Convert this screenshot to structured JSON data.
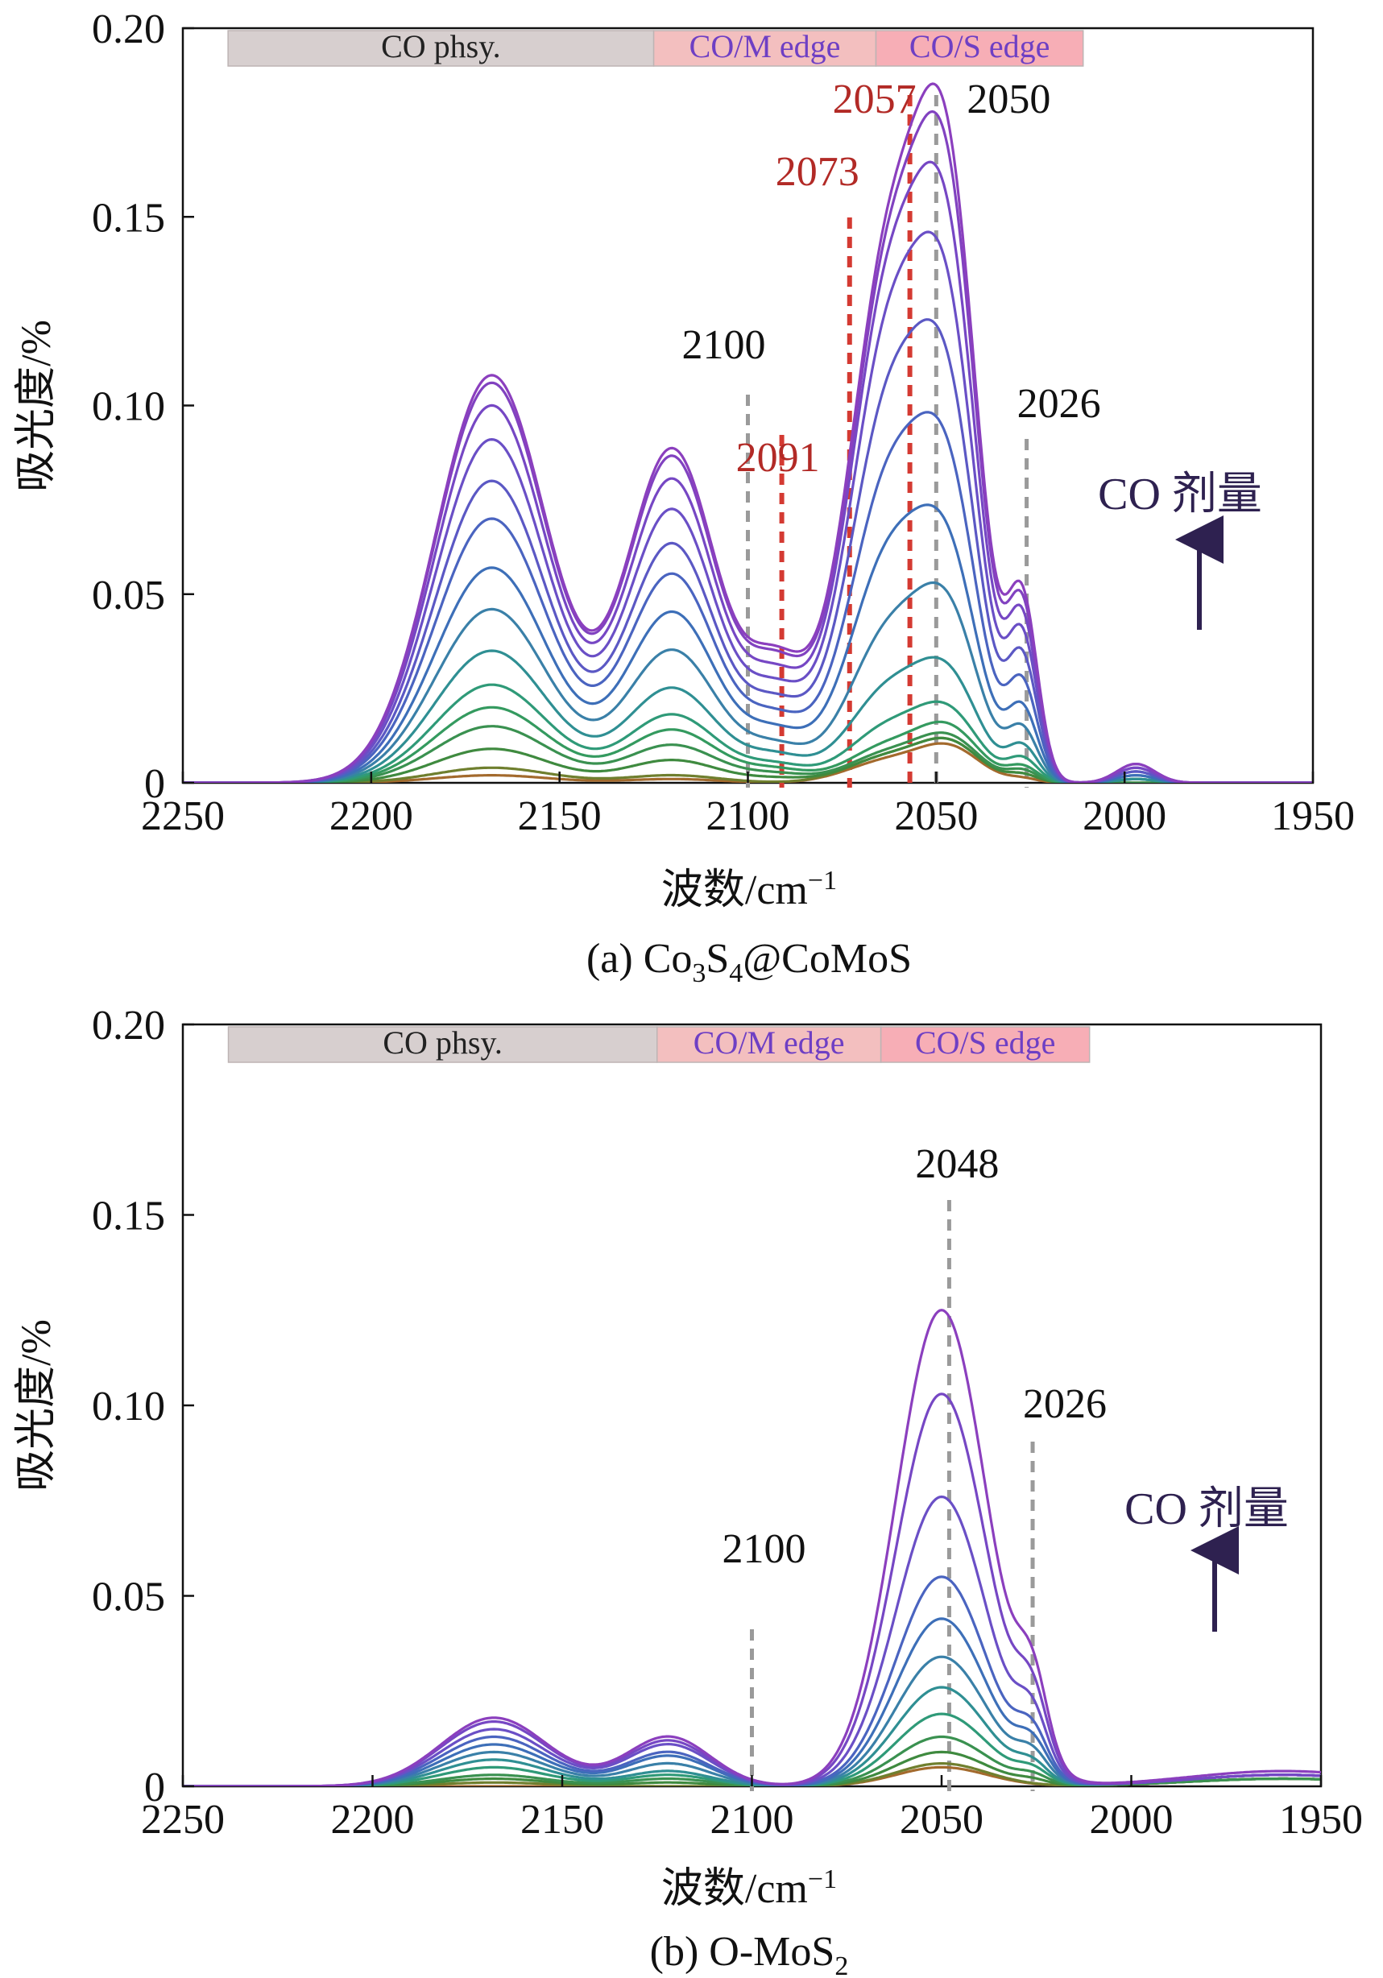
{
  "chart_data": [
    {
      "panel": "a",
      "type": "line",
      "caption_prefix": "(a) ",
      "caption_parts": [
        "Co",
        "3",
        "S",
        "4",
        "@CoMoS"
      ],
      "xlabel": "波数/cm",
      "xlabel_sup": "−1",
      "ylabel": "吸光度/%",
      "xlim": [
        2250,
        1950
      ],
      "ylim": [
        0,
        0.2
      ],
      "xticks": [
        "2250",
        "2200",
        "2150",
        "2100",
        "2050",
        "2000",
        "1950"
      ],
      "yticks": [
        "0",
        "0.05",
        "0.10",
        "0.15",
        "0.20"
      ],
      "bands": [
        {
          "label": "CO phsy.",
          "x_from": 2238,
          "x_to": 2125,
          "color": "#d7cfcf",
          "text_color": "#222222"
        },
        {
          "label": "CO/M edge",
          "x_from": 2125,
          "x_to": 2066,
          "color": "#f3bfbf",
          "text_color": "#6e3fc4"
        },
        {
          "label": "CO/S edge",
          "x_from": 2066,
          "x_to": 2011,
          "color": "#f7aeb6",
          "text_color": "#6e3fc4"
        }
      ],
      "peaks": [
        {
          "wavenumber": 2100,
          "label": "2100",
          "color": "gray"
        },
        {
          "wavenumber": 2091,
          "label": "2091",
          "color": "red"
        },
        {
          "wavenumber": 2073,
          "label": "2073",
          "color": "red"
        },
        {
          "wavenumber": 2057,
          "label": "2057",
          "color": "red"
        },
        {
          "wavenumber": 2050,
          "label": "2050",
          "color": "gray"
        },
        {
          "wavenumber": 2026,
          "label": "2026",
          "color": "gray"
        }
      ],
      "dose_label": "CO 剂量",
      "components": [
        {
          "center": 2168,
          "width": 15
        },
        {
          "center": 2120,
          "width": 12
        },
        {
          "center": 2092,
          "width": 8
        },
        {
          "center": 2062,
          "width": 11
        },
        {
          "center": 2046,
          "width": 8
        },
        {
          "center": 2027,
          "width": 4
        },
        {
          "center": 1997,
          "width": 5
        }
      ],
      "series": [
        {
          "name": "dose 1",
          "color": "#a36a2d",
          "amplitudes": [
            0.002,
            0.001,
            0.0,
            0.006,
            0.008,
            0.001,
            0.0
          ]
        },
        {
          "name": "dose 2",
          "color": "#6f7f2e",
          "amplitudes": [
            0.004,
            0.002,
            0.0,
            0.007,
            0.009,
            0.002,
            0.0
          ]
        },
        {
          "name": "dose 3",
          "color": "#3f8a3f",
          "amplitudes": [
            0.009,
            0.006,
            0.001,
            0.007,
            0.009,
            0.002,
            0.0
          ]
        },
        {
          "name": "dose 4",
          "color": "#3a9150",
          "amplitudes": [
            0.015,
            0.01,
            0.002,
            0.008,
            0.01,
            0.003,
            0.0
          ]
        },
        {
          "name": "dose 5",
          "color": "#349a5f",
          "amplitudes": [
            0.02,
            0.014,
            0.003,
            0.01,
            0.012,
            0.004,
            0.001
          ]
        },
        {
          "name": "dose 6",
          "color": "#2f9a78",
          "amplitudes": [
            0.026,
            0.018,
            0.004,
            0.015,
            0.015,
            0.006,
            0.001
          ]
        },
        {
          "name": "dose 7",
          "color": "#2f8f93",
          "amplitudes": [
            0.035,
            0.025,
            0.006,
            0.025,
            0.022,
            0.009,
            0.001
          ]
        },
        {
          "name": "dose 8",
          "color": "#3a80a8",
          "amplitudes": [
            0.046,
            0.035,
            0.008,
            0.04,
            0.035,
            0.013,
            0.002
          ]
        },
        {
          "name": "dose 9",
          "color": "#3d6fb8",
          "amplitudes": [
            0.057,
            0.045,
            0.011,
            0.06,
            0.045,
            0.018,
            0.002
          ]
        },
        {
          "name": "dose 10",
          "color": "#4a64c0",
          "amplitudes": [
            0.07,
            0.055,
            0.014,
            0.08,
            0.06,
            0.024,
            0.003
          ]
        },
        {
          "name": "dose 11",
          "color": "#5b58c4",
          "amplitudes": [
            0.08,
            0.063,
            0.017,
            0.1,
            0.075,
            0.03,
            0.003
          ]
        },
        {
          "name": "dose 12",
          "color": "#6a4fc6",
          "amplitudes": [
            0.091,
            0.072,
            0.02,
            0.118,
            0.09,
            0.035,
            0.004
          ]
        },
        {
          "name": "dose 13",
          "color": "#7647c4",
          "amplitudes": [
            0.1,
            0.08,
            0.023,
            0.13,
            0.104,
            0.039,
            0.004
          ]
        },
        {
          "name": "dose 14",
          "color": "#8142c0",
          "amplitudes": [
            0.106,
            0.086,
            0.026,
            0.136,
            0.116,
            0.042,
            0.005
          ]
        },
        {
          "name": "dose 15",
          "color": "#8b3fbe",
          "amplitudes": [
            0.108,
            0.088,
            0.027,
            0.14,
            0.122,
            0.044,
            0.005
          ]
        }
      ]
    },
    {
      "panel": "b",
      "type": "line",
      "caption_prefix": "(b) ",
      "caption_parts": [
        "O-MoS",
        "2"
      ],
      "xlabel": "波数/cm",
      "xlabel_sup": "−1",
      "ylabel": "吸光度/%",
      "xlim": [
        2250,
        1950
      ],
      "ylim": [
        0,
        0.2
      ],
      "xticks": [
        "2250",
        "2200",
        "2150",
        "2100",
        "2050",
        "2000",
        "1950"
      ],
      "yticks": [
        "0",
        "0.05",
        "0.10",
        "0.15",
        "0.20"
      ],
      "bands": [
        {
          "label": "CO phsy.",
          "x_from": 2238,
          "x_to": 2125,
          "color": "#d7cfcf",
          "text_color": "#222222"
        },
        {
          "label": "CO/M edge",
          "x_from": 2125,
          "x_to": 2066,
          "color": "#f3bfbf",
          "text_color": "#6e3fc4"
        },
        {
          "label": "CO/S edge",
          "x_from": 2066,
          "x_to": 2011,
          "color": "#f7aeb6",
          "text_color": "#6e3fc4"
        }
      ],
      "peaks": [
        {
          "wavenumber": 2100,
          "label": "2100",
          "color": "gray"
        },
        {
          "wavenumber": 2048,
          "label": "2048",
          "color": "gray"
        },
        {
          "wavenumber": 2026,
          "label": "2026",
          "color": "gray"
        }
      ],
      "dose_label": "CO 剂量",
      "components": [
        {
          "center": 2168,
          "width": 14
        },
        {
          "center": 2122,
          "width": 11
        },
        {
          "center": 2050,
          "width": 12
        },
        {
          "center": 2026,
          "width": 4
        },
        {
          "center": 1960,
          "width": 25
        }
      ],
      "series": [
        {
          "name": "dose 1",
          "color": "#a36a2d",
          "amplitudes": [
            0.0,
            0.0,
            0.005,
            0.0,
            0.002
          ]
        },
        {
          "name": "dose 2",
          "color": "#6f7f2e",
          "amplitudes": [
            0.001,
            0.0,
            0.006,
            0.0,
            0.002
          ]
        },
        {
          "name": "dose 3",
          "color": "#3f8a3f",
          "amplitudes": [
            0.002,
            0.001,
            0.009,
            0.001,
            0.002
          ]
        },
        {
          "name": "dose 4",
          "color": "#3a9150",
          "amplitudes": [
            0.003,
            0.002,
            0.013,
            0.002,
            0.002
          ]
        },
        {
          "name": "dose 5",
          "color": "#2f9a78",
          "amplitudes": [
            0.005,
            0.003,
            0.019,
            0.003,
            0.003
          ]
        },
        {
          "name": "dose 6",
          "color": "#2f8f93",
          "amplitudes": [
            0.007,
            0.004,
            0.026,
            0.004,
            0.003
          ]
        },
        {
          "name": "dose 7",
          "color": "#3a80a8",
          "amplitudes": [
            0.009,
            0.006,
            0.034,
            0.006,
            0.003
          ]
        },
        {
          "name": "dose 8",
          "color": "#3d6fb8",
          "amplitudes": [
            0.011,
            0.008,
            0.044,
            0.008,
            0.003
          ]
        },
        {
          "name": "dose 9",
          "color": "#4a64c0",
          "amplitudes": [
            0.013,
            0.009,
            0.055,
            0.01,
            0.003
          ]
        },
        {
          "name": "dose 10",
          "color": "#6a4fc6",
          "amplitudes": [
            0.015,
            0.011,
            0.076,
            0.013,
            0.003
          ]
        },
        {
          "name": "dose 11",
          "color": "#7647c4",
          "amplitudes": [
            0.017,
            0.012,
            0.103,
            0.016,
            0.003
          ]
        },
        {
          "name": "dose 12",
          "color": "#8b3fbe",
          "amplitudes": [
            0.018,
            0.013,
            0.125,
            0.019,
            0.004
          ]
        }
      ]
    }
  ]
}
